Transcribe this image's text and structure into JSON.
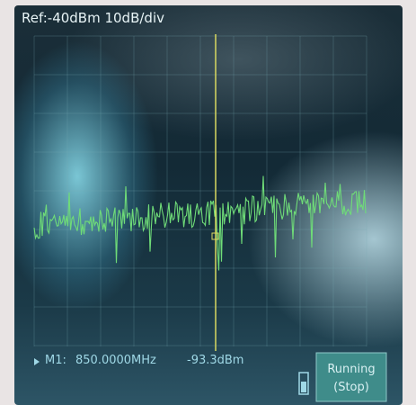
{
  "header": {
    "reference": "Ref:-40dBm 10dB/div"
  },
  "marker": {
    "label": "M1:",
    "frequency": "850.0000MHz",
    "level": "-93.3dBm"
  },
  "button": {
    "state": "Running",
    "action": "(Stop)"
  }
}
